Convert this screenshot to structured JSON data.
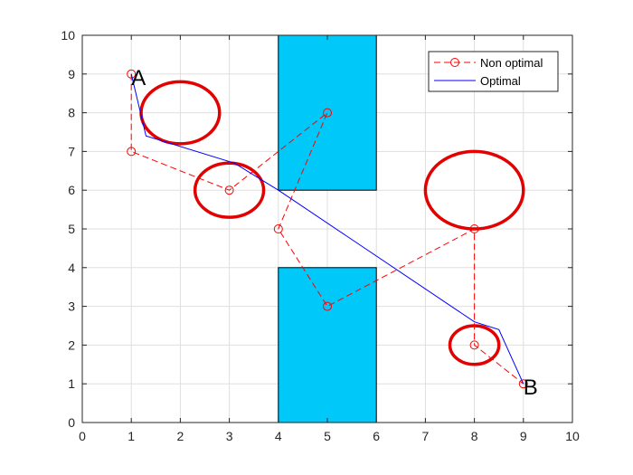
{
  "chart_data": {
    "type": "line",
    "title": "",
    "xlabel": "",
    "ylabel": "",
    "xlim": [
      0,
      10
    ],
    "ylim": [
      0,
      10
    ],
    "grid": true,
    "x_ticks": [
      "0",
      "1",
      "2",
      "3",
      "4",
      "5",
      "6",
      "7",
      "8",
      "9",
      "10"
    ],
    "y_ticks": [
      "0",
      "1",
      "2",
      "3",
      "4",
      "5",
      "6",
      "7",
      "8",
      "9",
      "10"
    ],
    "legend_position": "top-right",
    "series": [
      {
        "name": "Non optimal",
        "color": "#ff0000",
        "line_style": "dashed",
        "marker": "circle",
        "x": [
          1,
          1,
          3,
          5,
          4,
          5,
          8,
          8,
          9
        ],
        "y": [
          9,
          7,
          6,
          8,
          5,
          3,
          5,
          2,
          1
        ]
      },
      {
        "name": "Optimal",
        "color": "#0000ff",
        "line_style": "solid",
        "marker": "none",
        "x": [
          1,
          1.3,
          3.1,
          4,
          8,
          8.5,
          9
        ],
        "y": [
          9,
          7.4,
          6.7,
          6,
          2.6,
          2.4,
          1
        ]
      }
    ],
    "obstacles": {
      "color": "#00c8f8",
      "rectangles": [
        {
          "x0": 4,
          "x1": 6,
          "y0": 6,
          "y1": 10
        },
        {
          "x0": 4,
          "x1": 6,
          "y0": 0,
          "y1": 4
        }
      ],
      "ellipses_color": "#e30000",
      "ellipses": [
        {
          "cx": 2,
          "cy": 8,
          "rx": 0.8,
          "ry": 0.8
        },
        {
          "cx": 3,
          "cy": 6,
          "rx": 0.7,
          "ry": 0.7
        },
        {
          "cx": 8,
          "cy": 6,
          "rx": 1,
          "ry": 1
        },
        {
          "cx": 8,
          "cy": 2,
          "rx": 0.5,
          "ry": 0.5
        }
      ]
    },
    "annotations": [
      {
        "text": "A",
        "x": 1,
        "y": 9
      },
      {
        "text": "B",
        "x": 9,
        "y": 1
      }
    ]
  }
}
